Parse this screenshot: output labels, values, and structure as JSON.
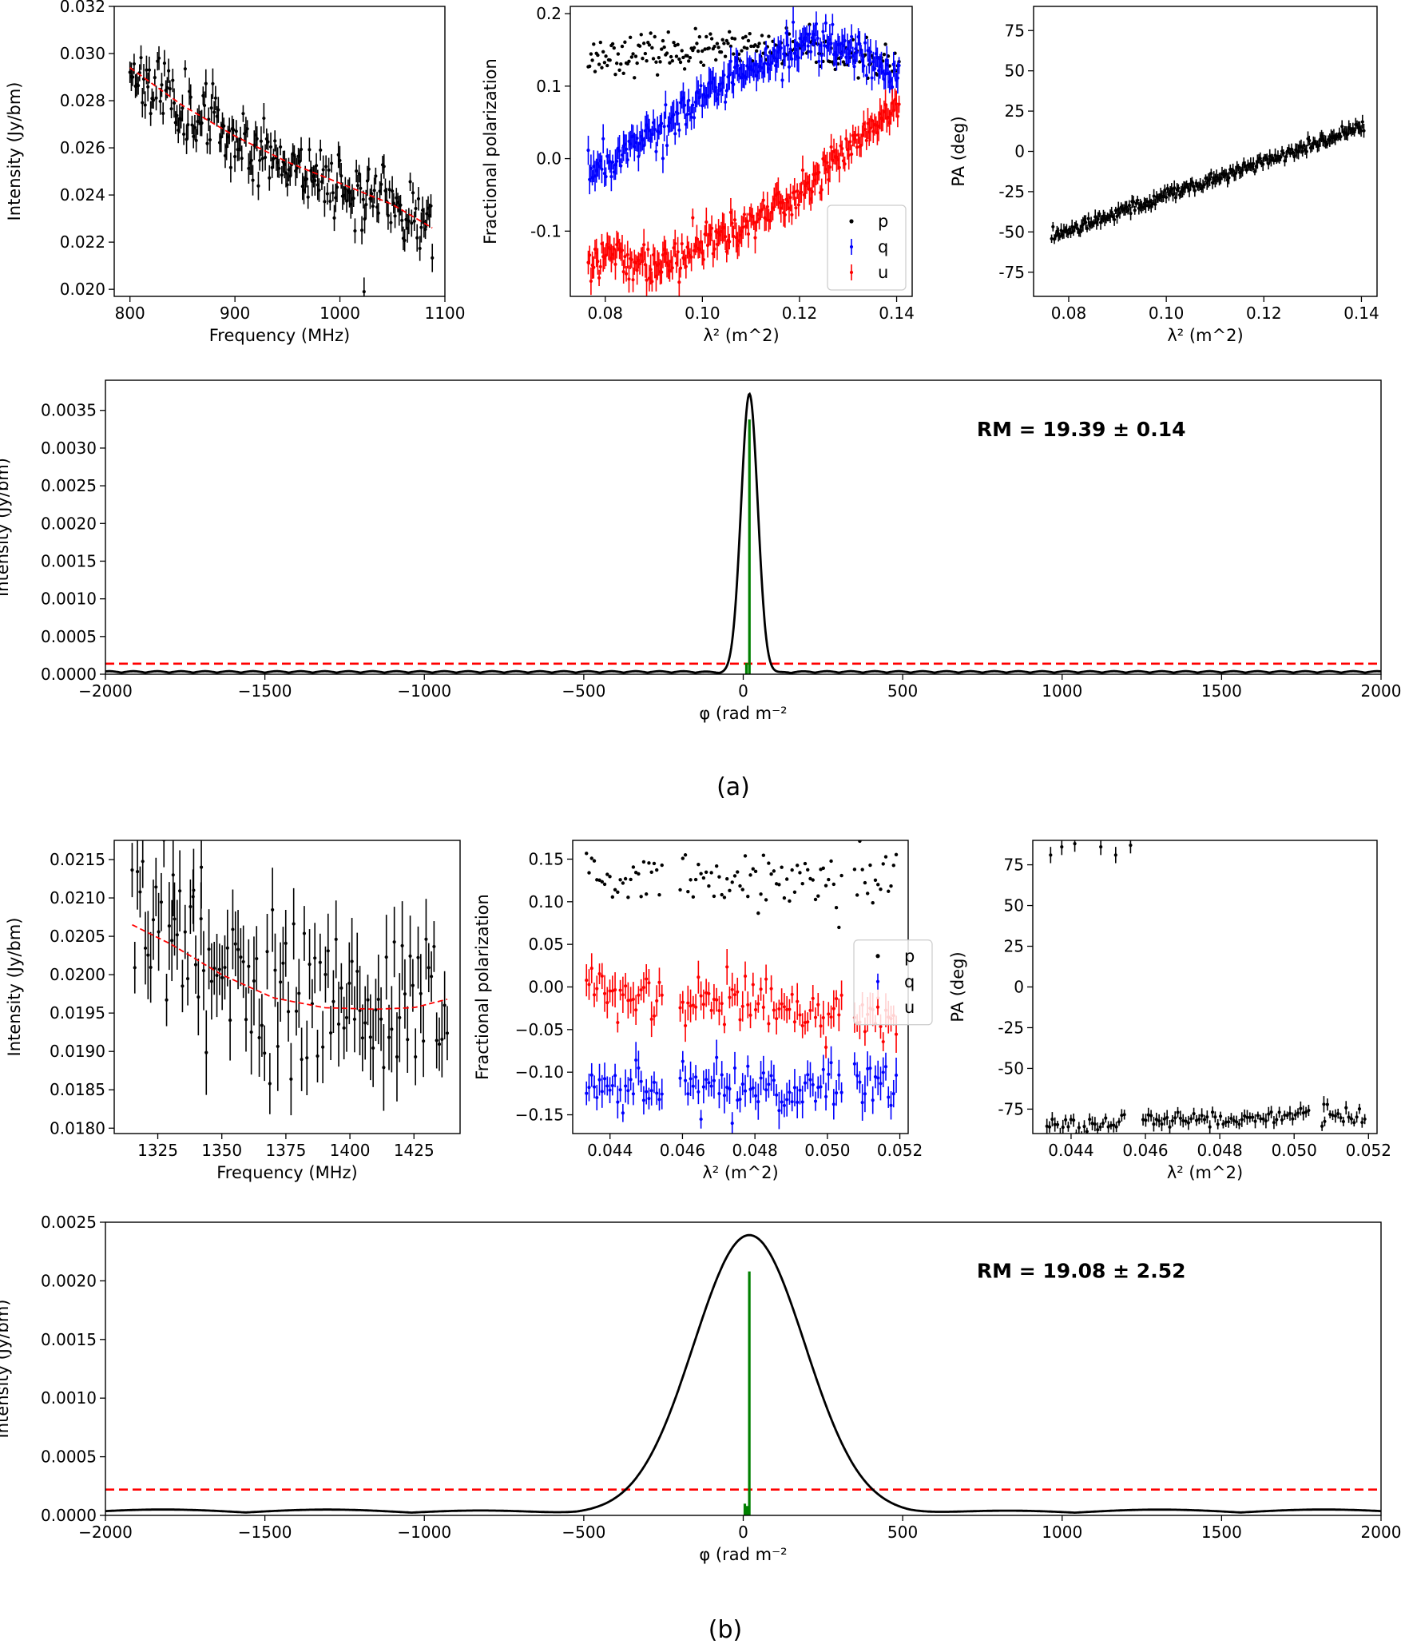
{
  "panels": [
    {
      "id": "a",
      "caption": "(a)",
      "intensity_spectrum": {
        "type": "scatter",
        "xlabel": "Frequency (MHz)",
        "ylabel": "Intensity (Jy/bm)",
        "xlim": [
          785,
          1100
        ],
        "ylim": [
          0.0197,
          0.032
        ],
        "xticks": [
          800,
          900,
          1000,
          1100
        ],
        "yticks": [
          0.02,
          0.022,
          0.024,
          0.026,
          0.028,
          0.03,
          0.032
        ],
        "ytick_labels": [
          "0.020",
          "0.022",
          "0.024",
          "0.026",
          "0.028",
          "0.030",
          "0.032"
        ],
        "x_range": [
          800,
          1088
        ],
        "model_fit": [
          [
            800,
            0.0294
          ],
          [
            850,
            0.0278
          ],
          [
            900,
            0.0265
          ],
          [
            950,
            0.0254
          ],
          [
            1000,
            0.0245
          ],
          [
            1050,
            0.0236
          ],
          [
            1088,
            0.0226
          ]
        ],
        "scatter_sd": 0.0007,
        "error": 0.0005,
        "n_points": 220,
        "outliers": [
          [
            1023,
            0.0199
          ]
        ],
        "colors": {
          "data": "#000000",
          "fit": "#ff0000"
        }
      },
      "fractional_polarization": {
        "type": "scatter",
        "xlabel": "λ² (m^2)",
        "ylabel": "Fractional polarization",
        "xlim": [
          0.0728,
          0.1432
        ],
        "ylim": [
          -0.19,
          0.21
        ],
        "xticks": [
          0.08,
          0.1,
          0.12,
          0.14
        ],
        "xtick_labels": [
          "0.08",
          "0.10",
          "0.12",
          "0.14"
        ],
        "yticks": [
          -0.1,
          0.0,
          0.1,
          0.2
        ],
        "ytick_labels": [
          "-0.1",
          "0.0",
          "0.1",
          "0.2"
        ],
        "x_range": [
          0.0765,
          0.1405
        ],
        "n_points": 230,
        "series": [
          {
            "name": "p",
            "color": "#000000",
            "kind": "dot",
            "curve": [
              [
                0.0765,
                0.14
              ],
              [
                0.1,
                0.15
              ],
              [
                0.12,
                0.15
              ],
              [
                0.1405,
                0.13
              ]
            ],
            "scatter_sd": 0.012
          },
          {
            "name": "q",
            "color": "#0000ff",
            "kind": "errorbar",
            "curve": [
              [
                0.0765,
                -0.02
              ],
              [
                0.09,
                0.04
              ],
              [
                0.11,
                0.12
              ],
              [
                0.124,
                0.17
              ],
              [
                0.135,
                0.14
              ],
              [
                0.1405,
                0.11
              ]
            ],
            "scatter_sd": 0.013
          },
          {
            "name": "u",
            "color": "#ff0000",
            "kind": "errorbar",
            "curve": [
              [
                0.0765,
                -0.13
              ],
              [
                0.09,
                -0.15
              ],
              [
                0.1,
                -0.12
              ],
              [
                0.12,
                -0.05
              ],
              [
                0.135,
                0.04
              ],
              [
                0.1405,
                0.08
              ]
            ],
            "scatter_sd": 0.013
          }
        ],
        "legend": [
          "p",
          "q",
          "u"
        ],
        "legend_position": "lower-right"
      },
      "position_angle": {
        "type": "scatter",
        "xlabel": "λ² (m^2)",
        "ylabel": "PA (deg)",
        "xlim": [
          0.0728,
          0.1432
        ],
        "ylim": [
          -90,
          90
        ],
        "xticks": [
          0.08,
          0.1,
          0.12,
          0.14
        ],
        "xtick_labels": [
          "0.08",
          "0.10",
          "0.12",
          "0.14"
        ],
        "yticks": [
          -75,
          -50,
          -25,
          0,
          25,
          50,
          75
        ],
        "x_range": [
          0.0765,
          0.1405
        ],
        "curve": [
          [
            0.0765,
            -52
          ],
          [
            0.1405,
            15
          ]
        ],
        "scatter_sd": 2.0,
        "n_points": 230,
        "outliers": [],
        "colors": {
          "data": "#000000"
        }
      },
      "faraday_spectrum": {
        "type": "line",
        "xlabel": "φ (rad m⁻²",
        "ylabel": "Intensity (Jy/bm)",
        "xlim": [
          -2000,
          2000
        ],
        "ylim": [
          0,
          0.0039
        ],
        "xticks": [
          -2000,
          -1500,
          -1000,
          -500,
          0,
          500,
          1000,
          1500,
          2000
        ],
        "xtick_labels": [
          "−2000",
          "−1500",
          "−1000",
          "−500",
          "0",
          "500",
          "1000",
          "1500",
          "2000"
        ],
        "yticks": [
          0.0,
          0.0005,
          0.001,
          0.0015,
          0.002,
          0.0025,
          0.003,
          0.0035
        ],
        "ytick_labels": [
          "0.0000",
          "0.0005",
          "0.0010",
          "0.0015",
          "0.0020",
          "0.0025",
          "0.0030",
          "0.0035"
        ],
        "peak": {
          "phi": 19.4,
          "height": 0.00372,
          "sigma": 26
        },
        "sidelobe_amplitude": 4e-05,
        "sidelobe_period": 75,
        "threshold": 0.00014,
        "clean_components": [
          {
            "phi": 19.4,
            "height": 0.00338
          },
          {
            "phi": 10,
            "height": 0.00015
          }
        ],
        "annotation": "RM = 19.39 ± 0.14",
        "colors": {
          "spectrum": "#000000",
          "threshold": "#ff0000",
          "components": "#008000"
        }
      }
    },
    {
      "id": "b",
      "caption": "(b)",
      "intensity_spectrum": {
        "type": "scatter",
        "xlabel": "Frequency (MHz)",
        "ylabel": "Intensity (Jy/bm)",
        "xlim": [
          1308,
          1443
        ],
        "ylim": [
          0.01793,
          0.02175
        ],
        "xticks": [
          1325,
          1350,
          1375,
          1400,
          1425
        ],
        "yticks": [
          0.018,
          0.0185,
          0.019,
          0.0195,
          0.02,
          0.0205,
          0.021,
          0.0215
        ],
        "ytick_labels": [
          "0.0180",
          "0.0185",
          "0.0190",
          "0.0195",
          "0.0200",
          "0.0205",
          "0.0210",
          "0.0215"
        ],
        "x_range": [
          1315,
          1438
        ],
        "model_fit": [
          [
            1315,
            0.02065
          ],
          [
            1330,
            0.0204
          ],
          [
            1350,
            0.02
          ],
          [
            1370,
            0.0197
          ],
          [
            1390,
            0.01957
          ],
          [
            1410,
            0.01955
          ],
          [
            1425,
            0.01957
          ],
          [
            1438,
            0.01968
          ]
        ],
        "scatter_sd": 0.0005,
        "error": 0.00045,
        "n_points": 120,
        "outliers": [
          [
            1339,
            0.0211
          ],
          [
            1331,
            0.0213
          ],
          [
            1342,
            0.0214
          ]
        ],
        "colors": {
          "data": "#000000",
          "fit": "#ff0000"
        }
      },
      "fractional_polarization": {
        "type": "scatter",
        "xlabel": "λ² (m^2)",
        "ylabel": "Fractional polarization",
        "xlim": [
          0.04297,
          0.05223
        ],
        "ylim": [
          -0.172,
          0.172
        ],
        "xticks": [
          0.044,
          0.046,
          0.048,
          0.05,
          0.052
        ],
        "xtick_labels": [
          "0.044",
          "0.046",
          "0.048",
          "0.050",
          "0.052"
        ],
        "yticks": [
          -0.15,
          -0.1,
          -0.05,
          0.0,
          0.05,
          0.1,
          0.15
        ],
        "ytick_labels": [
          "−0.15",
          "−0.10",
          "−0.05",
          "0.00",
          "0.05",
          "0.10",
          "0.15"
        ],
        "x_range": [
          0.04335,
          0.0519
        ],
        "gaps": [
          [
            0.04545,
            0.0459
          ],
          [
            0.05045,
            0.05075
          ]
        ],
        "n_points": 120,
        "series": [
          {
            "name": "p",
            "color": "#000000",
            "kind": "dot",
            "curve": [
              [
                0.04335,
                0.13
              ],
              [
                0.0519,
                0.12
              ]
            ],
            "scatter_sd": 0.016
          },
          {
            "name": "q",
            "color": "#0000ff",
            "kind": "errorbar",
            "curve": [
              [
                0.04335,
                -0.12
              ],
              [
                0.0519,
                -0.115
              ]
            ],
            "scatter_sd": 0.014
          },
          {
            "name": "u",
            "color": "#ff0000",
            "kind": "errorbar",
            "curve": [
              [
                0.04335,
                0.0
              ],
              [
                0.0519,
                -0.04
              ]
            ],
            "scatter_sd": 0.017
          }
        ],
        "legend": [
          "p",
          "q",
          "u"
        ],
        "legend_position": "right"
      },
      "position_angle": {
        "type": "scatter",
        "xlabel": "λ² (m^2)",
        "ylabel": "PA (deg)",
        "xlim": [
          0.04297,
          0.05223
        ],
        "ylim": [
          -90,
          90
        ],
        "xticks": [
          0.044,
          0.046,
          0.048,
          0.05,
          0.052
        ],
        "xtick_labels": [
          "0.044",
          "0.046",
          "0.048",
          "0.050",
          "0.052"
        ],
        "yticks": [
          -75,
          -50,
          -25,
          0,
          25,
          50,
          75
        ],
        "x_range": [
          0.04335,
          0.0519
        ],
        "gaps": [
          [
            0.04545,
            0.0459
          ],
          [
            0.05045,
            0.05075
          ]
        ],
        "curve": [
          [
            0.04335,
            -85
          ],
          [
            0.0505,
            -79
          ],
          [
            0.0519,
            -80
          ]
        ],
        "scatter_sd": 2.5,
        "n_points": 120,
        "outliers": [
          [
            0.04345,
            81
          ],
          [
            0.04375,
            86
          ],
          [
            0.0441,
            88
          ],
          [
            0.0448,
            86
          ],
          [
            0.0452,
            81
          ],
          [
            0.0456,
            87
          ],
          [
            0.0508,
            -72
          ]
        ],
        "colors": {
          "data": "#000000"
        }
      },
      "faraday_spectrum": {
        "type": "line",
        "xlabel": "φ (rad m⁻²",
        "ylabel": "Intensity (Jy/bm)",
        "xlim": [
          -2000,
          2000
        ],
        "ylim": [
          0,
          0.0025
        ],
        "xticks": [
          -2000,
          -1500,
          -1000,
          -500,
          0,
          500,
          1000,
          1500,
          2000
        ],
        "xtick_labels": [
          "−2000",
          "−1500",
          "−1000",
          "−500",
          "0",
          "500",
          "1000",
          "1500",
          "2000"
        ],
        "yticks": [
          0.0,
          0.0005,
          0.001,
          0.0015,
          0.002,
          0.0025
        ],
        "ytick_labels": [
          "0.0000",
          "0.0005",
          "0.0010",
          "0.0015",
          "0.0020",
          "0.0025"
        ],
        "peak": {
          "phi": 19.1,
          "height": 0.00239,
          "sigma": 175
        },
        "sidelobe_amplitude": 5e-05,
        "sidelobe_period": 520,
        "threshold": 0.00022,
        "clean_components": [
          {
            "phi": 19.1,
            "height": 0.00208
          },
          {
            "phi": 5,
            "height": 0.0001
          },
          {
            "phi": 12,
            "height": 8e-05
          }
        ],
        "annotation": "RM = 19.08 ± 2.52",
        "colors": {
          "spectrum": "#000000",
          "threshold": "#ff0000",
          "components": "#008000"
        }
      }
    }
  ]
}
